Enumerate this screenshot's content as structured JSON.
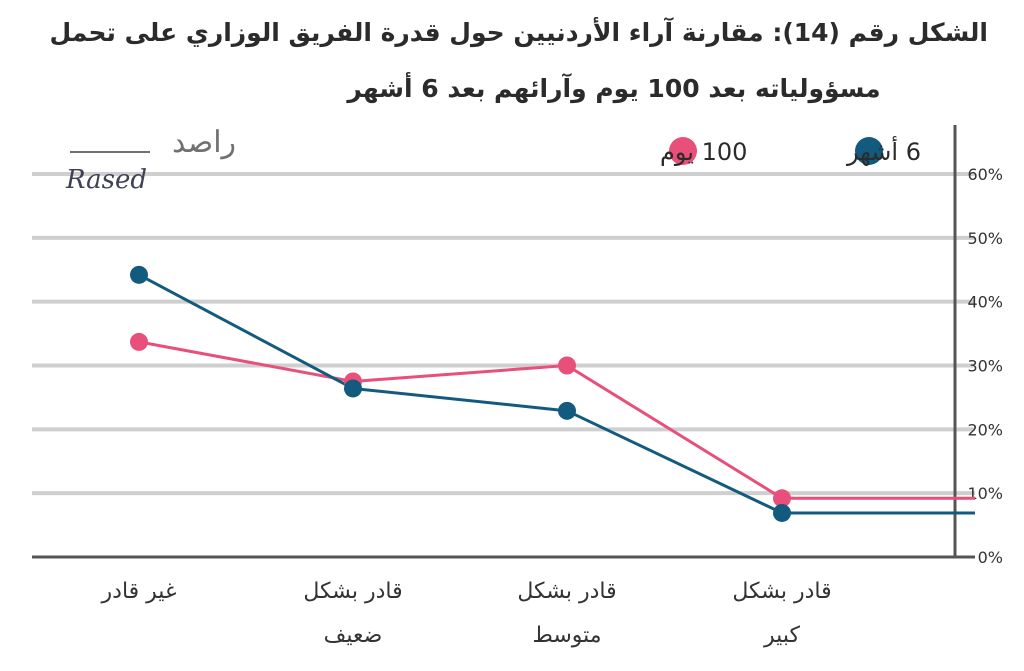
{
  "chart_data": {
    "type": "line",
    "title": "الشكل رقم (14): مقارنة آراء الأردنيين حول قدرة الفريق الوزاري على تحمل مسؤولياته بعد 100 يوم وآرائهم بعد 6 أشهر",
    "title_lines": [
      "الشكل رقم (14): مقارنة آراء الأردنيين حول قدرة الفريق الوزاري على تحمل",
      "مسؤولياته بعد 100 يوم وآرائهم بعد 6 أشهر"
    ],
    "categories": [
      [
        "غير قادر"
      ],
      [
        "قادر بشكل",
        "ضعيف"
      ],
      [
        "قادر بشكل",
        "متوسط"
      ],
      [
        "قادر بشكل",
        "كبير"
      ]
    ],
    "ylim": [
      0,
      60
    ],
    "y_ticks": [
      "0%",
      "10%",
      "20%",
      "30%",
      "40%",
      "50%",
      "60%"
    ],
    "series": [
      {
        "name": "100 يوم",
        "color": "#e84f7a",
        "values": [
          33.7,
          27.5,
          30.0,
          9.2
        ]
      },
      {
        "name": "6 أشهر",
        "color": "#125b7f",
        "values": [
          44.2,
          26.4,
          22.9,
          6.9
        ]
      }
    ],
    "grid": true,
    "legend_position": "top-right",
    "y_axis_side": "right"
  },
  "logo": {
    "arabic": "راصد",
    "english": "Rased"
  }
}
